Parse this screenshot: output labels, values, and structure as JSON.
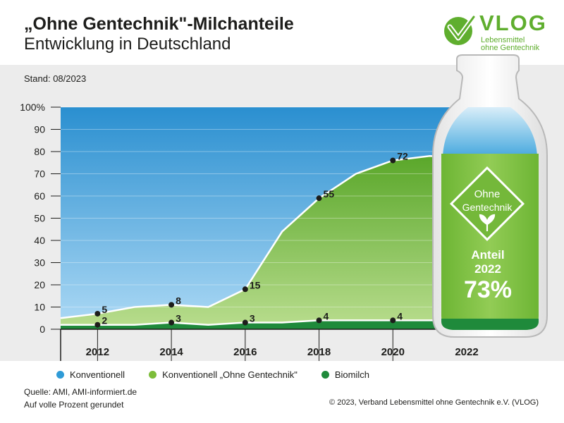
{
  "header": {
    "title": "„Ohne Gentechnik\"-Milchanteile",
    "subtitle": "Entwicklung in Deutschland",
    "stand": "Stand: 08/2023"
  },
  "logo": {
    "word": "VLOG",
    "line1": "Lebensmittel",
    "line2": "ohne Gentechnik"
  },
  "bottle": {
    "seal_line1": "Ohne",
    "seal_line2": "Gentechnik",
    "anteil_label": "Anteil",
    "anteil_year": "2022",
    "anteil_value": "73%"
  },
  "legend": [
    {
      "label": "Konventionell",
      "color": "#2f9bd7"
    },
    {
      "label": "Konventionell „Ohne Gentechnik\"",
      "color": "#7dbd3a"
    },
    {
      "label": "Biomilch",
      "color": "#1f8a3b"
    }
  ],
  "footer": {
    "source": "Quelle: AMI, AMI-informiert.de",
    "note": "Auf volle Prozent gerundet",
    "copyright": "© 2023, Verband Lebensmittel ohne Gentechnik e.V. (VLOG)"
  },
  "colors": {
    "konventionell": "#2f9bd7",
    "ohne_gentechnik": "#7dbd3a",
    "biomilch": "#1f8a3b",
    "logo_green": "#5fae2e"
  },
  "chart_data": {
    "type": "area",
    "stacked": true,
    "x": [
      2011,
      2012,
      2013,
      2014,
      2015,
      2016,
      2017,
      2018,
      2019,
      2020,
      2021,
      2022
    ],
    "xlim": [
      2011,
      2022
    ],
    "ylim": [
      0,
      100
    ],
    "y_ticks": [
      0,
      10,
      20,
      30,
      40,
      50,
      60,
      70,
      80,
      90,
      100
    ],
    "y_tick_labels": [
      "0",
      "10",
      "20",
      "30",
      "40",
      "50",
      "60",
      "70",
      "80",
      "90",
      "100%"
    ],
    "x_tick_labels": [
      "2012",
      "2014",
      "2016",
      "2018",
      "2020",
      "2022"
    ],
    "x_ticks": [
      2012,
      2014,
      2016,
      2018,
      2020,
      2022
    ],
    "series": [
      {
        "name": "Biomilch",
        "values": [
          2,
          2,
          2,
          3,
          2,
          3,
          3,
          4,
          4,
          4,
          4,
          4
        ]
      },
      {
        "name": "Konventionell „Ohne Gentechnik\"",
        "values": [
          5,
          7,
          10,
          11,
          10,
          18,
          44,
          59,
          70,
          76,
          78,
          77
        ]
      },
      {
        "name": "Konventionell",
        "values": [
          100,
          100,
          100,
          100,
          100,
          100,
          100,
          100,
          100,
          100,
          100,
          100
        ]
      }
    ],
    "annotations": [
      {
        "x": 2012,
        "y": 7,
        "label": "5"
      },
      {
        "x": 2012,
        "y": 2,
        "label": "2"
      },
      {
        "x": 2014,
        "y": 11,
        "label": "8"
      },
      {
        "x": 2014,
        "y": 3,
        "label": "3"
      },
      {
        "x": 2016,
        "y": 18,
        "label": "15"
      },
      {
        "x": 2016,
        "y": 3,
        "label": "3"
      },
      {
        "x": 2018,
        "y": 59,
        "label": "55"
      },
      {
        "x": 2018,
        "y": 4,
        "label": "4"
      },
      {
        "x": 2020,
        "y": 76,
        "label": "72"
      },
      {
        "x": 2020,
        "y": 4,
        "label": "4"
      },
      {
        "x": 2022,
        "y": 77,
        "label": "73"
      },
      {
        "x": 2022,
        "y": 4,
        "label": "4"
      }
    ]
  }
}
